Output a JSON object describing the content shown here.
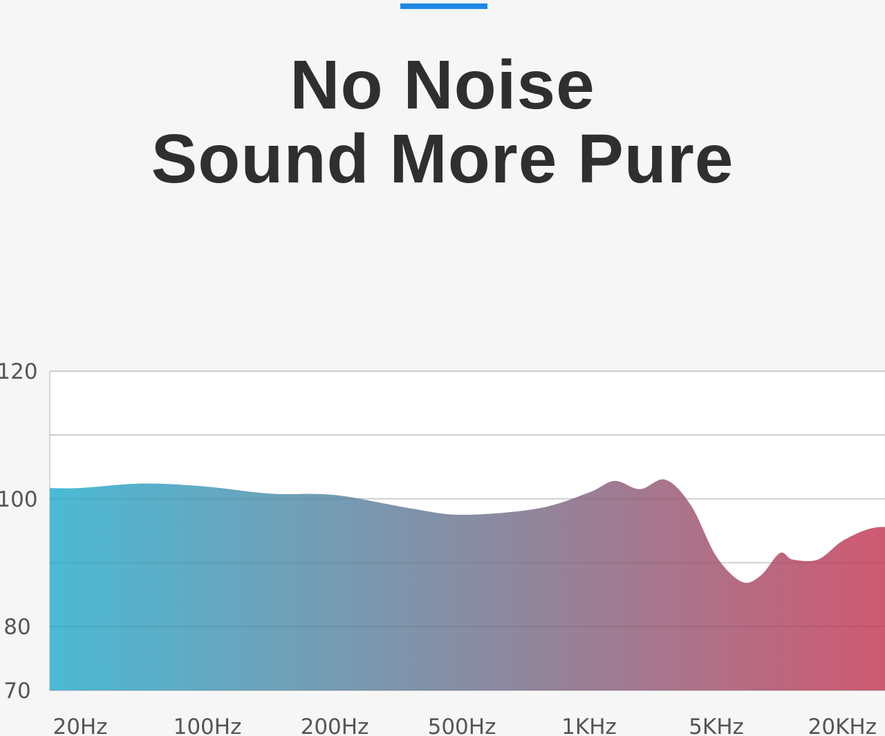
{
  "colors": {
    "accent": "#1e88e5",
    "title": "#2f2f2f",
    "gradient_start": "#4bbad4",
    "gradient_mid": "#8b8aa0",
    "gradient_end": "#d9526a"
  },
  "headline": {
    "line1": "No Noise",
    "line2": "Sound More Pure"
  },
  "chart_data": {
    "type": "area",
    "title": "",
    "xlabel": "",
    "ylabel": "",
    "grid": true,
    "ylim": [
      70,
      120
    ],
    "ygrid": [
      70,
      80,
      90,
      100,
      110,
      120
    ],
    "yticks": [
      {
        "value": 120,
        "label": "120"
      },
      {
        "value": 100,
        "label": "100"
      },
      {
        "value": 80,
        "label": "80"
      },
      {
        "value": 70,
        "label": "70"
      }
    ],
    "xcategories": [
      "20Hz",
      "100Hz",
      "200Hz",
      "500Hz",
      "1KHz",
      "5KHz",
      "20KHz"
    ],
    "series": [
      {
        "points": [
          {
            "x": 0.0,
            "y": 101.7
          },
          {
            "x": 0.5,
            "y": 102.4
          },
          {
            "x": 1.0,
            "y": 101.9
          },
          {
            "x": 1.5,
            "y": 100.8
          },
          {
            "x": 2.0,
            "y": 100.6
          },
          {
            "x": 2.6,
            "y": 98.5
          },
          {
            "x": 3.0,
            "y": 97.5
          },
          {
            "x": 3.6,
            "y": 98.5
          },
          {
            "x": 4.0,
            "y": 101.0
          },
          {
            "x": 4.2,
            "y": 102.8
          },
          {
            "x": 4.4,
            "y": 101.5
          },
          {
            "x": 4.6,
            "y": 103.0
          },
          {
            "x": 4.8,
            "y": 99.0
          },
          {
            "x": 5.0,
            "y": 91.0
          },
          {
            "x": 5.2,
            "y": 87.0
          },
          {
            "x": 5.35,
            "y": 88.0
          },
          {
            "x": 5.5,
            "y": 91.5
          },
          {
            "x": 5.6,
            "y": 90.5
          },
          {
            "x": 5.8,
            "y": 90.5
          },
          {
            "x": 6.0,
            "y": 93.5
          },
          {
            "x": 6.25,
            "y": 95.5
          },
          {
            "x": 6.5,
            "y": 95.0
          },
          {
            "x": 6.8,
            "y": 92.5
          }
        ]
      }
    ]
  }
}
